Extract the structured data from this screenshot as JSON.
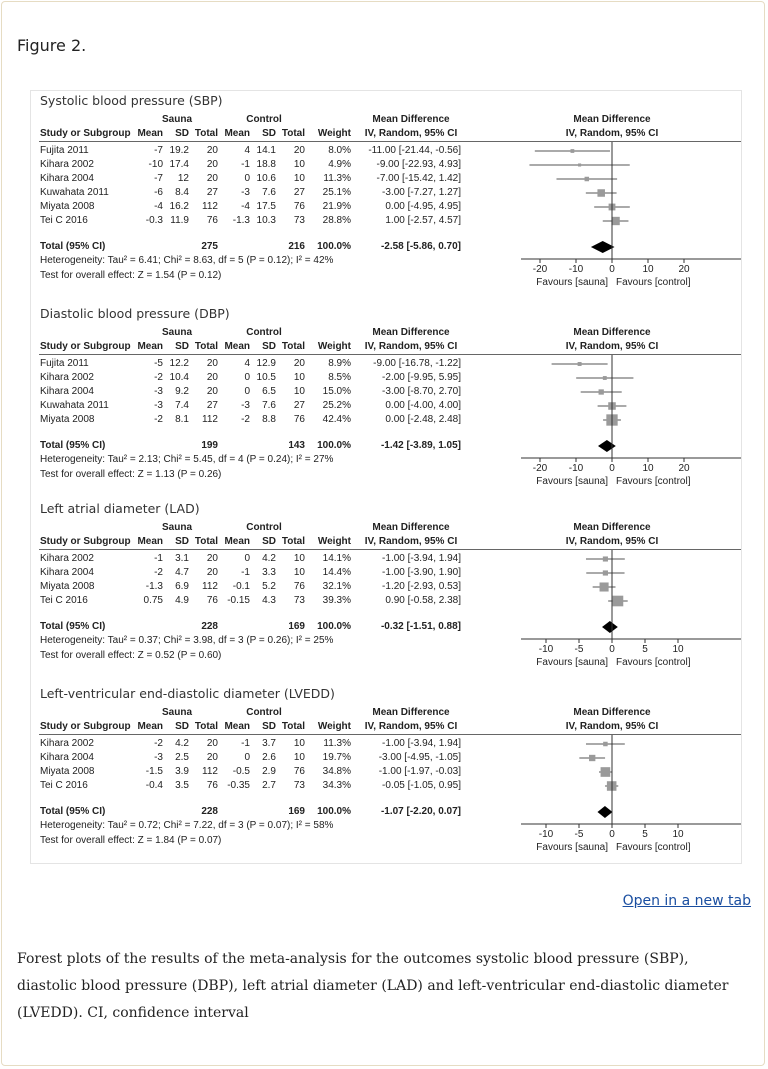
{
  "figure_label": "Figure 2.",
  "open_link": "Open in a new tab",
  "caption": "Forest plots of the results of the meta-analysis for the outcomes systolic blood pressure (SBP), diastolic blood pressure (DBP), left atrial diameter (LAD) and left-ventricular end-diastolic diameter (LVEDD). CI, confidence interval",
  "headers": {
    "sauna": "Sauna",
    "control": "Control",
    "md": "Mean Difference",
    "study": "Study or Subgroup",
    "mean": "Mean",
    "sd": "SD",
    "total": "Total",
    "weight": "Weight",
    "method": "IV, Random, 95% CI"
  },
  "colors": {
    "study_marker": "#9a9a9a",
    "diamond": "#000000",
    "link": "#1a4ea0"
  },
  "chart_data": [
    {
      "type": "forest",
      "title": "Systolic blood pressure (SBP)",
      "ticks": [
        -20,
        -10,
        0,
        10,
        20
      ],
      "xlim": [
        -25,
        36
      ],
      "favours_left": "Favours [sauna]",
      "favours_right": "Favours [control]",
      "rows": [
        {
          "study": "Fujita 2011",
          "s_mean": "-7",
          "s_sd": "19.2",
          "s_n": "20",
          "c_mean": "4",
          "c_sd": "14.1",
          "c_n": "20",
          "weight": "8.0%",
          "ci": "-11.00 [-21.44, -0.56]",
          "md": -11.0,
          "lo": -21.44,
          "hi": -0.56,
          "w": 8.0
        },
        {
          "study": "Kihara 2002",
          "s_mean": "-10",
          "s_sd": "17.4",
          "s_n": "20",
          "c_mean": "-1",
          "c_sd": "18.8",
          "c_n": "10",
          "weight": "4.9%",
          "ci": "-9.00 [-22.93, 4.93]",
          "md": -9.0,
          "lo": -22.93,
          "hi": 4.93,
          "w": 4.9
        },
        {
          "study": "Kihara 2004",
          "s_mean": "-7",
          "s_sd": "12",
          "s_n": "20",
          "c_mean": "0",
          "c_sd": "10.6",
          "c_n": "10",
          "weight": "11.3%",
          "ci": "-7.00 [-15.42, 1.42]",
          "md": -7.0,
          "lo": -15.42,
          "hi": 1.42,
          "w": 11.3
        },
        {
          "study": "Kuwahata 2011",
          "s_mean": "-6",
          "s_sd": "8.4",
          "s_n": "27",
          "c_mean": "-3",
          "c_sd": "7.6",
          "c_n": "27",
          "weight": "25.1%",
          "ci": "-3.00 [-7.27, 1.27]",
          "md": -3.0,
          "lo": -7.27,
          "hi": 1.27,
          "w": 25.1
        },
        {
          "study": "Miyata 2008",
          "s_mean": "-4",
          "s_sd": "16.2",
          "s_n": "112",
          "c_mean": "-4",
          "c_sd": "17.5",
          "c_n": "76",
          "weight": "21.9%",
          "ci": "0.00 [-4.95, 4.95]",
          "md": 0.0,
          "lo": -4.95,
          "hi": 4.95,
          "w": 21.9
        },
        {
          "study": "Tei C 2016",
          "s_mean": "-0.3",
          "s_sd": "11.9",
          "s_n": "76",
          "c_mean": "-1.3",
          "c_sd": "10.3",
          "c_n": "73",
          "weight": "28.8%",
          "ci": "1.00 [-2.57, 4.57]",
          "md": 1.0,
          "lo": -2.57,
          "hi": 4.57,
          "w": 28.8
        }
      ],
      "total": {
        "label": "Total (95% CI)",
        "s_n": "275",
        "c_n": "216",
        "weight": "100.0%",
        "ci": "-2.58 [-5.86, 0.70]",
        "md": -2.58,
        "lo": -5.86,
        "hi": 0.7
      },
      "heterogeneity": "Heterogeneity: Tau² = 6.41; Chi² = 8.63, df = 5 (P = 0.12); I² = 42%",
      "overall": "Test for overall effect: Z = 1.54 (P = 0.12)"
    },
    {
      "type": "forest",
      "title": "Diastolic blood pressure (DBP)",
      "ticks": [
        -20,
        -10,
        0,
        10,
        20
      ],
      "xlim": [
        -25,
        36
      ],
      "favours_left": "Favours [sauna]",
      "favours_right": "Favours [control]",
      "rows": [
        {
          "study": "Fujita 2011",
          "s_mean": "-5",
          "s_sd": "12.2",
          "s_n": "20",
          "c_mean": "4",
          "c_sd": "12.9",
          "c_n": "20",
          "weight": "8.9%",
          "ci": "-9.00 [-16.78, -1.22]",
          "md": -9.0,
          "lo": -16.78,
          "hi": -1.22,
          "w": 8.9
        },
        {
          "study": "Kihara 2002",
          "s_mean": "-2",
          "s_sd": "10.4",
          "s_n": "20",
          "c_mean": "0",
          "c_sd": "10.5",
          "c_n": "10",
          "weight": "8.5%",
          "ci": "-2.00 [-9.95, 5.95]",
          "md": -2.0,
          "lo": -9.95,
          "hi": 5.95,
          "w": 8.5
        },
        {
          "study": "Kihara 2004",
          "s_mean": "-3",
          "s_sd": "9.2",
          "s_n": "20",
          "c_mean": "0",
          "c_sd": "6.5",
          "c_n": "10",
          "weight": "15.0%",
          "ci": "-3.00 [-8.70, 2.70]",
          "md": -3.0,
          "lo": -8.7,
          "hi": 2.7,
          "w": 15.0
        },
        {
          "study": "Kuwahata 2011",
          "s_mean": "-3",
          "s_sd": "7.4",
          "s_n": "27",
          "c_mean": "-3",
          "c_sd": "7.6",
          "c_n": "27",
          "weight": "25.2%",
          "ci": "0.00 [-4.00, 4.00]",
          "md": 0.0,
          "lo": -4.0,
          "hi": 4.0,
          "w": 25.2
        },
        {
          "study": "Miyata 2008",
          "s_mean": "-2",
          "s_sd": "8.1",
          "s_n": "112",
          "c_mean": "-2",
          "c_sd": "8.8",
          "c_n": "76",
          "weight": "42.4%",
          "ci": "0.00 [-2.48, 2.48]",
          "md": 0.0,
          "lo": -2.48,
          "hi": 2.48,
          "w": 42.4
        }
      ],
      "total": {
        "label": "Total (95% CI)",
        "s_n": "199",
        "c_n": "143",
        "weight": "100.0%",
        "ci": "-1.42 [-3.89, 1.05]",
        "md": -1.42,
        "lo": -3.89,
        "hi": 1.05
      },
      "heterogeneity": "Heterogeneity: Tau² = 2.13; Chi² = 5.45, df = 4 (P = 0.24); I² = 27%",
      "overall": "Test for overall effect: Z = 1.13 (P = 0.26)"
    },
    {
      "type": "forest",
      "title": "Left atrial diameter (LAD)",
      "ticks": [
        -10,
        -5,
        0,
        5,
        10
      ],
      "xlim": [
        -14,
        19
      ],
      "favours_left": "Favours [sauna]",
      "favours_right": "Favours [control]",
      "rows": [
        {
          "study": "Kihara 2002",
          "s_mean": "-1",
          "s_sd": "3.1",
          "s_n": "20",
          "c_mean": "0",
          "c_sd": "4.2",
          "c_n": "10",
          "weight": "14.1%",
          "ci": "-1.00 [-3.94, 1.94]",
          "md": -1.0,
          "lo": -3.94,
          "hi": 1.94,
          "w": 14.1
        },
        {
          "study": "Kihara 2004",
          "s_mean": "-2",
          "s_sd": "4.7",
          "s_n": "20",
          "c_mean": "-1",
          "c_sd": "3.3",
          "c_n": "10",
          "weight": "14.4%",
          "ci": "-1.00 [-3.90, 1.90]",
          "md": -1.0,
          "lo": -3.9,
          "hi": 1.9,
          "w": 14.4
        },
        {
          "study": "Miyata 2008",
          "s_mean": "-1.3",
          "s_sd": "6.9",
          "s_n": "112",
          "c_mean": "-0.1",
          "c_sd": "5.2",
          "c_n": "76",
          "weight": "32.1%",
          "ci": "-1.20 [-2.93, 0.53]",
          "md": -1.2,
          "lo": -2.93,
          "hi": 0.53,
          "w": 32.1
        },
        {
          "study": "Tei C 2016",
          "s_mean": "0.75",
          "s_sd": "4.9",
          "s_n": "76",
          "c_mean": "-0.15",
          "c_sd": "4.3",
          "c_n": "73",
          "weight": "39.3%",
          "ci": "0.90 [-0.58, 2.38]",
          "md": 0.9,
          "lo": -0.58,
          "hi": 2.38,
          "w": 39.3
        }
      ],
      "total": {
        "label": "Total (95% CI)",
        "s_n": "228",
        "c_n": "169",
        "weight": "100.0%",
        "ci": "-0.32 [-1.51, 0.88]",
        "md": -0.32,
        "lo": -1.51,
        "hi": 0.88
      },
      "heterogeneity": "Heterogeneity: Tau² = 0.37; Chi² = 3.98, df = 3 (P = 0.26); I² = 25%",
      "overall": "Test for overall effect: Z = 0.52 (P = 0.60)"
    },
    {
      "type": "forest",
      "title": "Left-ventricular end-diastolic diameter (LVEDD)",
      "ticks": [
        -10,
        -5,
        0,
        5,
        10
      ],
      "xlim": [
        -14,
        19
      ],
      "favours_left": "Favours [sauna]",
      "favours_right": "Favours [control]",
      "rows": [
        {
          "study": "Kihara 2002",
          "s_mean": "-2",
          "s_sd": "4.2",
          "s_n": "20",
          "c_mean": "-1",
          "c_sd": "3.7",
          "c_n": "10",
          "weight": "11.3%",
          "ci": "-1.00 [-3.94, 1.94]",
          "md": -1.0,
          "lo": -3.94,
          "hi": 1.94,
          "w": 11.3
        },
        {
          "study": "Kihara 2004",
          "s_mean": "-3",
          "s_sd": "2.5",
          "s_n": "20",
          "c_mean": "0",
          "c_sd": "2.6",
          "c_n": "10",
          "weight": "19.7%",
          "ci": "-3.00 [-4.95, -1.05]",
          "md": -3.0,
          "lo": -4.95,
          "hi": -1.05,
          "w": 19.7
        },
        {
          "study": "Miyata 2008",
          "s_mean": "-1.5",
          "s_sd": "3.9",
          "s_n": "112",
          "c_mean": "-0.5",
          "c_sd": "2.9",
          "c_n": "76",
          "weight": "34.8%",
          "ci": "-1.00 [-1.97, -0.03]",
          "md": -1.0,
          "lo": -1.97,
          "hi": -0.03,
          "w": 34.8
        },
        {
          "study": "Tei C 2016",
          "s_mean": "-0.4",
          "s_sd": "3.5",
          "s_n": "76",
          "c_mean": "-0.35",
          "c_sd": "2.7",
          "c_n": "73",
          "weight": "34.3%",
          "ci": "-0.05 [-1.05, 0.95]",
          "md": -0.05,
          "lo": -1.05,
          "hi": 0.95,
          "w": 34.3
        }
      ],
      "total": {
        "label": "Total (95% CI)",
        "s_n": "228",
        "c_n": "169",
        "weight": "100.0%",
        "ci": "-1.07 [-2.20, 0.07]",
        "md": -1.07,
        "lo": -2.2,
        "hi": 0.07
      },
      "heterogeneity": "Heterogeneity: Tau² = 0.72; Chi² = 7.22, df = 3 (P = 0.07); I² = 58%",
      "overall": "Test for overall effect: Z = 1.84 (P = 0.07)"
    }
  ]
}
